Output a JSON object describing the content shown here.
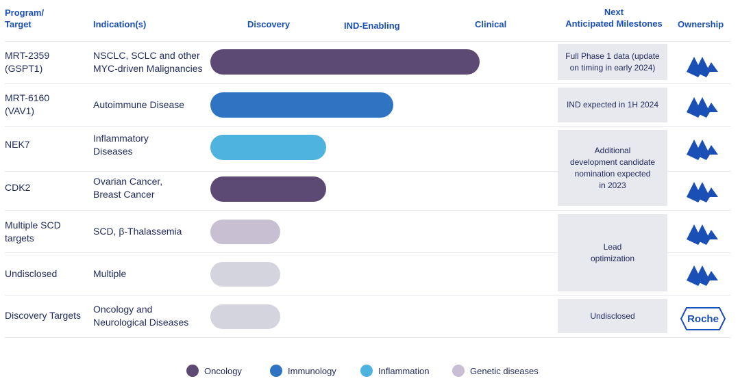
{
  "headers": {
    "program": "Program/\nTarget",
    "indication": "Indication(s)",
    "discovery": "Discovery",
    "ind_enabling": "IND-Enabling",
    "clinical": "Clinical",
    "milestones": "Next\nAnticipated Milestones",
    "ownership": "Ownership"
  },
  "colors": {
    "oncology": "#5c4a75",
    "immunology": "#2f74c2",
    "inflammation": "#4fb3df",
    "genetic": "#c9bfd3",
    "undisclosed": "#d4d4de",
    "brand_blue": "#1a4fb5"
  },
  "chart_data": {
    "type": "bar",
    "orientation": "horizontal",
    "stages": [
      "Discovery",
      "IND-Enabling",
      "Clinical"
    ],
    "categories": [
      "MRT-2359 (GSPT1)",
      "MRT-6160 (VAV1)",
      "NEK7",
      "CDK2",
      "Multiple SCD targets",
      "Undisclosed",
      "Discovery Targets"
    ],
    "values": [
      1.0,
      0.68,
      0.43,
      0.43,
      0.26,
      0.26,
      0.26
    ],
    "value_unit": "fraction of pipeline track",
    "xlim": [
      0,
      1
    ],
    "legend": [
      "Oncology",
      "Immunology",
      "Inflammation",
      "Genetic diseases"
    ],
    "legend_position": "bottom"
  },
  "rows": [
    {
      "program": "MRT-2359\n(GSPT1)",
      "indication": "NSCLC, SCLC and other\nMYC-driven Malignancies",
      "area": "oncology",
      "progress": 1.0,
      "owner": "monte-rosa"
    },
    {
      "program": "MRT-6160\n(VAV1)",
      "indication": "Autoimmune Disease",
      "area": "immunology",
      "progress": 0.68,
      "owner": "monte-rosa"
    },
    {
      "program": "NEK7",
      "indication": "Inflammatory\nDiseases",
      "area": "inflammation",
      "progress": 0.43,
      "owner": "monte-rosa"
    },
    {
      "program": "CDK2",
      "indication": "Ovarian Cancer,\nBreast Cancer",
      "area": "oncology",
      "progress": 0.43,
      "owner": "monte-rosa"
    },
    {
      "program": "Multiple SCD\ntargets",
      "indication": "SCD, β-Thalassemia",
      "area": "genetic",
      "progress": 0.26,
      "owner": "monte-rosa"
    },
    {
      "program": "Undisclosed",
      "indication": "Multiple",
      "area": "undisclosed",
      "progress": 0.26,
      "owner": "monte-rosa"
    },
    {
      "program": "Discovery Targets",
      "indication": "Oncology and\nNeurological Diseases",
      "area": "undisclosed",
      "progress": 0.26,
      "owner": "roche"
    }
  ],
  "milestones": [
    {
      "text": "Full Phase 1 data (update\non timing in early 2024)"
    },
    {
      "text": "IND expected in 1H 2024"
    },
    {
      "text": "Additional\ndevelopment candidate\nnomination expected\nin 2023"
    },
    {
      "text": "Lead\noptimization"
    },
    {
      "text": "Undisclosed"
    }
  ],
  "owners": {
    "roche_label": "Roche"
  },
  "legend": [
    {
      "label": "Oncology",
      "color": "#5c4a75"
    },
    {
      "label": "Immunology",
      "color": "#2f74c2"
    },
    {
      "label": "Inflammation",
      "color": "#4fb3df"
    },
    {
      "label": "Genetic diseases",
      "color": "#c9bfd3"
    }
  ]
}
